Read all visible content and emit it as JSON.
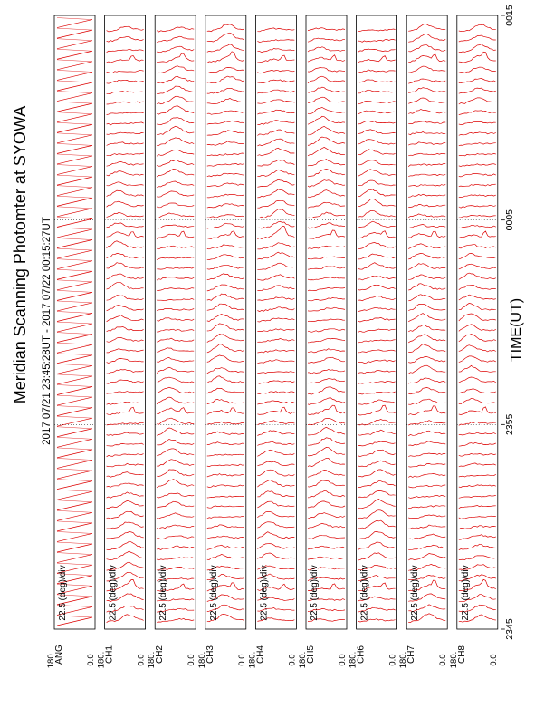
{
  "chart_data": {
    "type": "line",
    "title": "Meridian Scanning Photomter at SYOWA",
    "subtitle": "2017 07/21 23:45:28UT - 2017 07/22 00:15:27UT",
    "xlabel": "TIME(UT)",
    "x_ticks": [
      "2345",
      "2355",
      "0005",
      "0015"
    ],
    "panel_scale_label": "22.5 (deg)/div",
    "y_tick_top": "180.",
    "y_tick_bottom": "0.0",
    "line_color": "#dd0000",
    "panels": [
      {
        "label": "ANG",
        "kind": "scan-angle"
      },
      {
        "label": "CH1",
        "kind": "intensity"
      },
      {
        "label": "CH2",
        "kind": "intensity"
      },
      {
        "label": "CH3",
        "kind": "intensity"
      },
      {
        "label": "CH4",
        "kind": "intensity"
      },
      {
        "label": "CH5",
        "kind": "intensity"
      },
      {
        "label": "CH6",
        "kind": "intensity"
      },
      {
        "label": "CH7",
        "kind": "intensity"
      },
      {
        "label": "CH8",
        "kind": "intensity"
      }
    ]
  }
}
